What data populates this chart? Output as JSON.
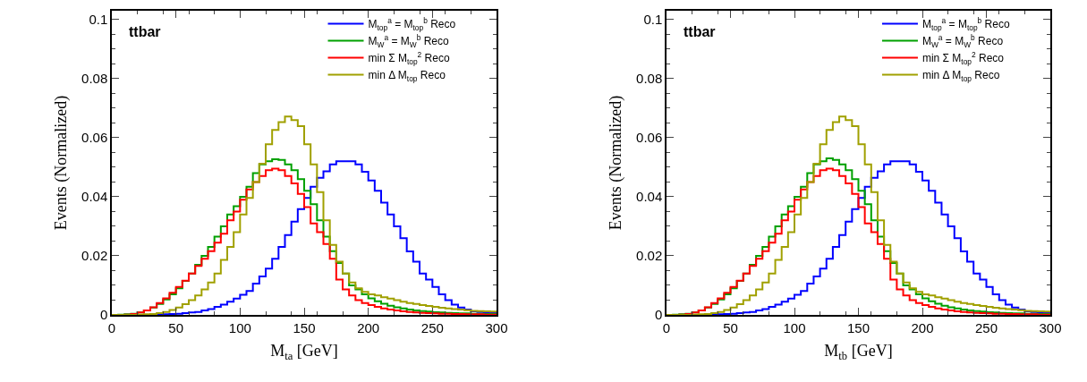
{
  "chart_data": [
    {
      "type": "histogram",
      "xlabel": "M$_{ta}$ [GeV]",
      "ylabel": "Events (Normalized)",
      "annotations": [
        "ttbar"
      ],
      "legend": "top right",
      "grid": false,
      "xlim": [
        0,
        300
      ],
      "xticks": [
        0,
        50,
        100,
        150,
        200,
        250,
        300
      ],
      "ylim": [
        0,
        0.103
      ],
      "yticks": [
        0,
        0.02,
        0.04,
        0.06,
        0.08,
        0.1
      ],
      "bins": [
        0,
        5,
        10,
        15,
        20,
        25,
        30,
        35,
        40,
        45,
        50,
        55,
        60,
        65,
        70,
        75,
        80,
        85,
        90,
        95,
        100,
        105,
        110,
        115,
        120,
        125,
        130,
        135,
        140,
        145,
        150,
        155,
        160,
        165,
        170,
        175,
        180,
        185,
        190,
        195,
        200,
        205,
        210,
        215,
        220,
        225,
        230,
        235,
        240,
        245,
        250,
        255,
        260,
        265,
        270,
        275,
        280,
        285,
        290,
        295,
        300
      ],
      "series": [
        {
          "name": "M$_{top}$$^{a}$ = M$_{top}$$^{b}$ Reco",
          "color": "#0000ff",
          "values": [
            0,
            0,
            0,
            0,
            0,
            0,
            0,
            0.0001,
            0.0002,
            0.0003,
            0.0004,
            0.0006,
            0.0008,
            0.001,
            0.0015,
            0.002,
            0.0027,
            0.0035,
            0.0045,
            0.0055,
            0.0068,
            0.0081,
            0.0106,
            0.013,
            0.0157,
            0.019,
            0.023,
            0.027,
            0.0316,
            0.0358,
            0.0396,
            0.0434,
            0.0464,
            0.0486,
            0.051,
            0.052,
            0.052,
            0.052,
            0.051,
            0.0485,
            0.0455,
            0.042,
            0.038,
            0.034,
            0.03,
            0.026,
            0.0215,
            0.018,
            0.014,
            0.012,
            0.0095,
            0.007,
            0.005,
            0.0035,
            0.0025,
            0.0018,
            0.0012,
            0.001,
            0.0008,
            0.0006
          ]
        },
        {
          "name": "M$_{W}$$^{a}$ = M$_{W}$$^{b}$ Reco",
          "color": "#00a000",
          "values": [
            0,
            0.0001,
            0.0002,
            0.0004,
            0.0008,
            0.0015,
            0.0025,
            0.0037,
            0.0052,
            0.007,
            0.009,
            0.0115,
            0.014,
            0.017,
            0.02,
            0.023,
            0.0265,
            0.03,
            0.034,
            0.0368,
            0.04,
            0.0434,
            0.048,
            0.051,
            0.052,
            0.0527,
            0.0525,
            0.051,
            0.049,
            0.046,
            0.042,
            0.0375,
            0.032,
            0.0265,
            0.0216,
            0.0176,
            0.014,
            0.01,
            0.0086,
            0.007,
            0.0056,
            0.0046,
            0.0038,
            0.0031,
            0.0026,
            0.0022,
            0.0018,
            0.0015,
            0.0013,
            0.0011,
            0.0009,
            0.0008,
            0.0007,
            0.0006,
            0.0005,
            0.0005,
            0.0004,
            0.0004,
            0.0003,
            0.0003
          ]
        },
        {
          "name": "min Σ M$_{top}$$^{2}$ Reco",
          "color": "#ff0000",
          "values": [
            0,
            0,
            0.0001,
            0.0003,
            0.0008,
            0.0015,
            0.0026,
            0.004,
            0.0056,
            0.0075,
            0.0095,
            0.0116,
            0.014,
            0.0166,
            0.019,
            0.0216,
            0.0245,
            0.0275,
            0.032,
            0.035,
            0.039,
            0.0425,
            0.045,
            0.047,
            0.049,
            0.0495,
            0.049,
            0.047,
            0.0445,
            0.041,
            0.0365,
            0.031,
            0.028,
            0.024,
            0.019,
            0.012,
            0.0086,
            0.0066,
            0.005,
            0.004,
            0.0033,
            0.0027,
            0.0022,
            0.0018,
            0.0015,
            0.0012,
            0.001,
            0.0008,
            0.0007,
            0.0006,
            0.0005,
            0.0004,
            0.0004,
            0.0003,
            0.0003,
            0.0002,
            0.0002,
            0.0002,
            0.0001,
            0.0001
          ]
        },
        {
          "name": "min Δ M$_{top}$ Reco",
          "color": "#a0a000",
          "values": [
            0,
            0,
            0,
            0,
            0.0001,
            0.0002,
            0.0003,
            0.0006,
            0.001,
            0.0017,
            0.0025,
            0.0036,
            0.005,
            0.0066,
            0.0086,
            0.011,
            0.014,
            0.0186,
            0.023,
            0.028,
            0.034,
            0.0396,
            0.045,
            0.0512,
            0.0578,
            0.0626,
            0.0653,
            0.0672,
            0.066,
            0.0639,
            0.0578,
            0.051,
            0.0416,
            0.032,
            0.0237,
            0.018,
            0.014,
            0.011,
            0.009,
            0.0078,
            0.007,
            0.0066,
            0.006,
            0.0055,
            0.005,
            0.0045,
            0.004,
            0.0037,
            0.0033,
            0.003,
            0.0027,
            0.0024,
            0.0022,
            0.002,
            0.0018,
            0.0016,
            0.0014,
            0.0013,
            0.0012,
            0.0011
          ]
        }
      ]
    },
    {
      "type": "histogram",
      "xlabel": "M$_{tb}$ [GeV]",
      "ylabel": "Events (Normalized)",
      "annotations": [
        "ttbar"
      ],
      "legend": "top right",
      "grid": false,
      "xlim": [
        0,
        300
      ],
      "xticks": [
        0,
        50,
        100,
        150,
        200,
        250,
        300
      ],
      "ylim": [
        0,
        0.103
      ],
      "yticks": [
        0,
        0.02,
        0.04,
        0.06,
        0.08,
        0.1
      ],
      "bins": [
        0,
        5,
        10,
        15,
        20,
        25,
        30,
        35,
        40,
        45,
        50,
        55,
        60,
        65,
        70,
        75,
        80,
        85,
        90,
        95,
        100,
        105,
        110,
        115,
        120,
        125,
        130,
        135,
        140,
        145,
        150,
        155,
        160,
        165,
        170,
        175,
        180,
        185,
        190,
        195,
        200,
        205,
        210,
        215,
        220,
        225,
        230,
        235,
        240,
        245,
        250,
        255,
        260,
        265,
        270,
        275,
        280,
        285,
        290,
        295,
        300
      ],
      "series": [
        {
          "name": "M$_{top}$$^{a}$ = M$_{top}$$^{b}$ Reco",
          "color": "#0000ff",
          "values": [
            0,
            0,
            0,
            0,
            0,
            0,
            0,
            0.0001,
            0.0002,
            0.0003,
            0.0004,
            0.0006,
            0.0008,
            0.001,
            0.0015,
            0.002,
            0.0027,
            0.0035,
            0.0045,
            0.0055,
            0.0068,
            0.0081,
            0.0106,
            0.013,
            0.0157,
            0.019,
            0.023,
            0.027,
            0.0316,
            0.0358,
            0.0396,
            0.0434,
            0.0464,
            0.0486,
            0.051,
            0.052,
            0.052,
            0.052,
            0.051,
            0.0485,
            0.0455,
            0.042,
            0.038,
            0.034,
            0.03,
            0.026,
            0.0215,
            0.018,
            0.014,
            0.012,
            0.0095,
            0.007,
            0.005,
            0.0035,
            0.0025,
            0.0018,
            0.0012,
            0.001,
            0.0008,
            0.0006
          ]
        },
        {
          "name": "M$_{W}$$^{a}$ = M$_{W}$$^{b}$ Reco",
          "color": "#00a000",
          "values": [
            0,
            0.0001,
            0.0002,
            0.0004,
            0.0008,
            0.0015,
            0.0025,
            0.0037,
            0.0052,
            0.007,
            0.009,
            0.0115,
            0.014,
            0.017,
            0.02,
            0.023,
            0.0265,
            0.03,
            0.034,
            0.0368,
            0.04,
            0.0434,
            0.048,
            0.051,
            0.052,
            0.053,
            0.0525,
            0.051,
            0.049,
            0.046,
            0.042,
            0.0375,
            0.032,
            0.0265,
            0.0216,
            0.0176,
            0.014,
            0.01,
            0.0086,
            0.007,
            0.0056,
            0.0046,
            0.0038,
            0.0031,
            0.0026,
            0.0022,
            0.0018,
            0.0015,
            0.0013,
            0.0011,
            0.0009,
            0.0008,
            0.0007,
            0.0006,
            0.0005,
            0.0005,
            0.0004,
            0.0004,
            0.0003,
            0.0003
          ]
        },
        {
          "name": "min Σ M$_{top}$$^{2}$ Reco",
          "color": "#ff0000",
          "values": [
            0,
            0,
            0.0001,
            0.0003,
            0.0008,
            0.0015,
            0.0026,
            0.004,
            0.0056,
            0.0075,
            0.0095,
            0.0116,
            0.014,
            0.0166,
            0.019,
            0.0216,
            0.0245,
            0.0275,
            0.032,
            0.035,
            0.039,
            0.0425,
            0.045,
            0.047,
            0.049,
            0.0495,
            0.049,
            0.047,
            0.0445,
            0.041,
            0.0365,
            0.031,
            0.028,
            0.024,
            0.019,
            0.012,
            0.0086,
            0.0066,
            0.005,
            0.004,
            0.0033,
            0.0027,
            0.0022,
            0.0018,
            0.0015,
            0.0012,
            0.001,
            0.0008,
            0.0007,
            0.0006,
            0.0005,
            0.0004,
            0.0004,
            0.0003,
            0.0003,
            0.0002,
            0.0002,
            0.0002,
            0.0001,
            0.0001
          ]
        },
        {
          "name": "min Δ M$_{top}$ Reco",
          "color": "#a0a000",
          "values": [
            0,
            0,
            0,
            0,
            0.0001,
            0.0002,
            0.0003,
            0.0006,
            0.001,
            0.0017,
            0.0025,
            0.0036,
            0.005,
            0.0066,
            0.0086,
            0.011,
            0.014,
            0.0186,
            0.023,
            0.028,
            0.034,
            0.0396,
            0.045,
            0.0512,
            0.0578,
            0.0626,
            0.0653,
            0.0672,
            0.066,
            0.0639,
            0.0578,
            0.051,
            0.0416,
            0.032,
            0.0237,
            0.018,
            0.014,
            0.011,
            0.009,
            0.0078,
            0.007,
            0.0066,
            0.006,
            0.0055,
            0.005,
            0.0045,
            0.004,
            0.0037,
            0.0033,
            0.003,
            0.0027,
            0.0024,
            0.0022,
            0.002,
            0.0018,
            0.0016,
            0.0014,
            0.0013,
            0.0012,
            0.0011
          ]
        }
      ]
    }
  ]
}
